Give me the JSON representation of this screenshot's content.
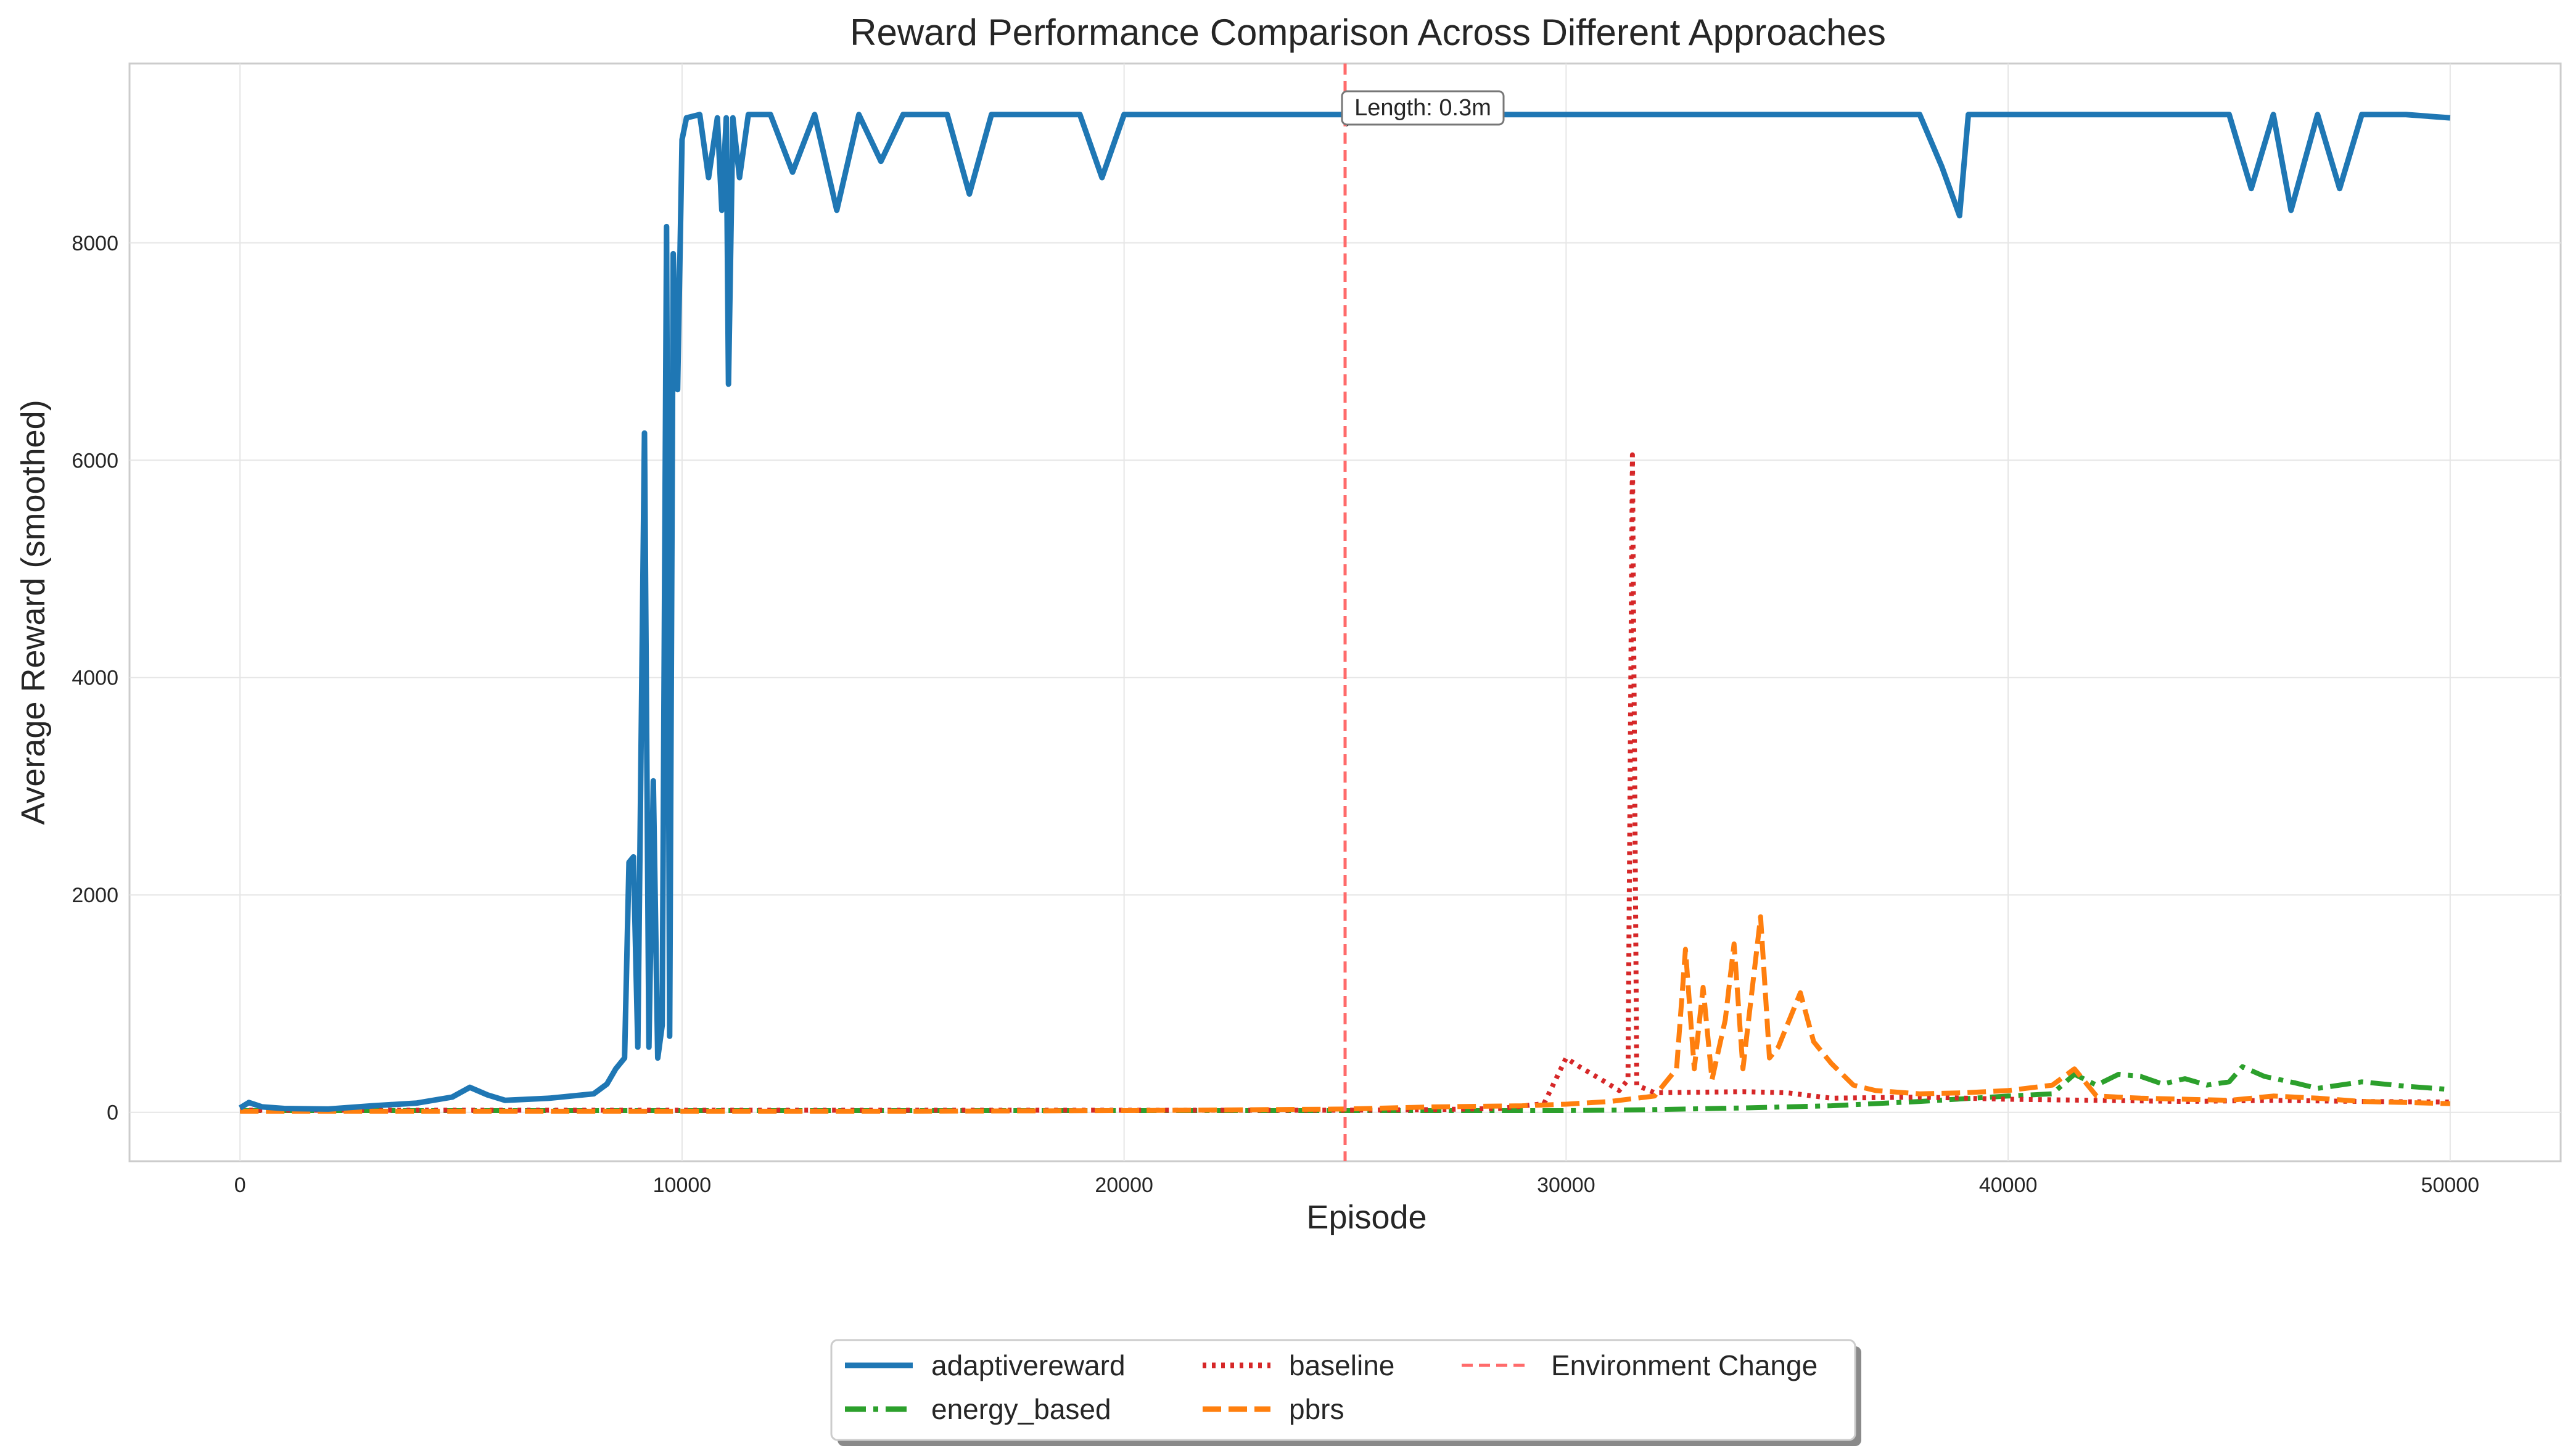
{
  "chart_data": {
    "type": "line",
    "title": "Reward Performance Comparison Across Different Approaches",
    "xlabel": "Episode",
    "ylabel": "Average Reward (smoothed)",
    "xlim": [
      -2500,
      52500
    ],
    "ylim": [
      -450,
      9650
    ],
    "xticks": [
      0,
      10000,
      20000,
      30000,
      40000,
      50000
    ],
    "yticks": [
      0,
      2000,
      4000,
      6000,
      8000
    ],
    "grid": true,
    "legend": {
      "placement": "bottom-center (below plot)",
      "columns": 3
    },
    "annotation": {
      "text": "Length: 0.3m",
      "x": 25000,
      "y": 9000
    },
    "vline": {
      "name": "Environment Change",
      "x": 25000,
      "color": "#ff6b6b",
      "style": "dashed"
    },
    "series": [
      {
        "name": "adaptivereward",
        "color": "#1f77b4",
        "style": "solid",
        "points": [
          [
            0,
            40
          ],
          [
            200,
            90
          ],
          [
            500,
            50
          ],
          [
            1000,
            35
          ],
          [
            2000,
            30
          ],
          [
            3000,
            60
          ],
          [
            4000,
            85
          ],
          [
            4800,
            140
          ],
          [
            5200,
            230
          ],
          [
            5600,
            160
          ],
          [
            6000,
            110
          ],
          [
            7000,
            130
          ],
          [
            8000,
            170
          ],
          [
            8300,
            260
          ],
          [
            8500,
            400
          ],
          [
            8700,
            500
          ],
          [
            8800,
            2300
          ],
          [
            8900,
            2350
          ],
          [
            9000,
            600
          ],
          [
            9150,
            6250
          ],
          [
            9250,
            600
          ],
          [
            9350,
            3050
          ],
          [
            9450,
            500
          ],
          [
            9550,
            800
          ],
          [
            9650,
            8150
          ],
          [
            9720,
            700
          ],
          [
            9800,
            7900
          ],
          [
            9900,
            6650
          ],
          [
            10000,
            8950
          ],
          [
            10100,
            9150
          ],
          [
            10400,
            9180
          ],
          [
            10600,
            8600
          ],
          [
            10800,
            9150
          ],
          [
            10900,
            8300
          ],
          [
            11000,
            9150
          ],
          [
            11050,
            6700
          ],
          [
            11150,
            9150
          ],
          [
            11300,
            8600
          ],
          [
            11500,
            9180
          ],
          [
            12000,
            9180
          ],
          [
            12500,
            8650
          ],
          [
            13000,
            9180
          ],
          [
            13500,
            8300
          ],
          [
            14000,
            9180
          ],
          [
            14500,
            8750
          ],
          [
            15000,
            9180
          ],
          [
            16000,
            9180
          ],
          [
            16500,
            8450
          ],
          [
            17000,
            9180
          ],
          [
            18000,
            9180
          ],
          [
            19000,
            9180
          ],
          [
            19500,
            8600
          ],
          [
            20000,
            9180
          ],
          [
            21000,
            9180
          ],
          [
            22000,
            9180
          ],
          [
            23000,
            9180
          ],
          [
            24000,
            9180
          ],
          [
            25000,
            9180
          ],
          [
            26000,
            9180
          ],
          [
            27000,
            9180
          ],
          [
            28000,
            9180
          ],
          [
            29000,
            9180
          ],
          [
            30000,
            9180
          ],
          [
            31000,
            9180
          ],
          [
            32000,
            9180
          ],
          [
            33000,
            9180
          ],
          [
            34000,
            9180
          ],
          [
            35000,
            9180
          ],
          [
            36000,
            9180
          ],
          [
            37000,
            9180
          ],
          [
            38000,
            9180
          ],
          [
            38500,
            8700
          ],
          [
            38900,
            8250
          ],
          [
            39100,
            9180
          ],
          [
            40000,
            9180
          ],
          [
            41000,
            9180
          ],
          [
            42000,
            9180
          ],
          [
            43000,
            9180
          ],
          [
            44000,
            9180
          ],
          [
            45000,
            9180
          ],
          [
            45500,
            8500
          ],
          [
            46000,
            9180
          ],
          [
            46400,
            8300
          ],
          [
            47000,
            9180
          ],
          [
            47500,
            8500
          ],
          [
            48000,
            9180
          ],
          [
            49000,
            9180
          ],
          [
            50000,
            9150
          ]
        ]
      },
      {
        "name": "energy_based",
        "color": "#2ca02c",
        "style": "dashdot",
        "points": [
          [
            0,
            15
          ],
          [
            5000,
            15
          ],
          [
            10000,
            15
          ],
          [
            15000,
            15
          ],
          [
            20000,
            15
          ],
          [
            25000,
            15
          ],
          [
            28000,
            15
          ],
          [
            30000,
            15
          ],
          [
            32000,
            25
          ],
          [
            34000,
            40
          ],
          [
            36000,
            60
          ],
          [
            38000,
            100
          ],
          [
            40000,
            150
          ],
          [
            41000,
            170
          ],
          [
            41500,
            350
          ],
          [
            42000,
            250
          ],
          [
            42500,
            350
          ],
          [
            43000,
            330
          ],
          [
            43500,
            260
          ],
          [
            44000,
            310
          ],
          [
            44500,
            250
          ],
          [
            45000,
            280
          ],
          [
            45300,
            420
          ],
          [
            45800,
            330
          ],
          [
            46500,
            270
          ],
          [
            47000,
            220
          ],
          [
            48000,
            280
          ],
          [
            49000,
            240
          ],
          [
            50000,
            210
          ]
        ]
      },
      {
        "name": "baseline",
        "color": "#d62728",
        "style": "dotted",
        "points": [
          [
            0,
            20
          ],
          [
            5000,
            20
          ],
          [
            10000,
            20
          ],
          [
            15000,
            20
          ],
          [
            20000,
            20
          ],
          [
            25000,
            20
          ],
          [
            27000,
            25
          ],
          [
            28500,
            35
          ],
          [
            29500,
            80
          ],
          [
            30000,
            500
          ],
          [
            30300,
            420
          ],
          [
            30800,
            300
          ],
          [
            31200,
            200
          ],
          [
            31400,
            300
          ],
          [
            31500,
            6050
          ],
          [
            31600,
            250
          ],
          [
            32000,
            180
          ],
          [
            34000,
            190
          ],
          [
            35000,
            180
          ],
          [
            36000,
            130
          ],
          [
            38000,
            140
          ],
          [
            40000,
            120
          ],
          [
            42000,
            110
          ],
          [
            44000,
            100
          ],
          [
            46000,
            110
          ],
          [
            48000,
            100
          ],
          [
            50000,
            95
          ]
        ]
      },
      {
        "name": "pbrs",
        "color": "#ff7f0e",
        "style": "dashed",
        "points": [
          [
            0,
            10
          ],
          [
            5000,
            10
          ],
          [
            10000,
            10
          ],
          [
            15000,
            10
          ],
          [
            20000,
            15
          ],
          [
            25000,
            30
          ],
          [
            27000,
            50
          ],
          [
            29000,
            60
          ],
          [
            30000,
            75
          ],
          [
            31000,
            100
          ],
          [
            32000,
            150
          ],
          [
            32500,
            400
          ],
          [
            32700,
            1500
          ],
          [
            32900,
            400
          ],
          [
            33100,
            1150
          ],
          [
            33300,
            300
          ],
          [
            33600,
            850
          ],
          [
            33800,
            1550
          ],
          [
            34000,
            400
          ],
          [
            34200,
            1100
          ],
          [
            34400,
            1800
          ],
          [
            34600,
            500
          ],
          [
            34800,
            600
          ],
          [
            35000,
            800
          ],
          [
            35300,
            1100
          ],
          [
            35600,
            650
          ],
          [
            36000,
            450
          ],
          [
            36500,
            250
          ],
          [
            37000,
            200
          ],
          [
            38000,
            170
          ],
          [
            39000,
            180
          ],
          [
            40000,
            200
          ],
          [
            41000,
            250
          ],
          [
            41500,
            400
          ],
          [
            42000,
            150
          ],
          [
            43000,
            130
          ],
          [
            44000,
            120
          ],
          [
            45000,
            110
          ],
          [
            46000,
            150
          ],
          [
            47000,
            130
          ],
          [
            48000,
            100
          ],
          [
            49000,
            90
          ],
          [
            50000,
            80
          ]
        ]
      }
    ]
  }
}
